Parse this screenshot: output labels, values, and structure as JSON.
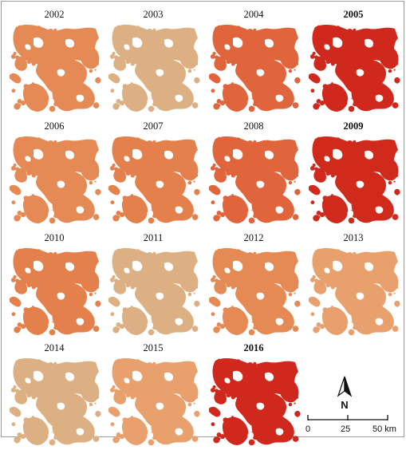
{
  "panels": [
    {
      "year": "2002",
      "bold": false,
      "color": "#e58a55"
    },
    {
      "year": "2003",
      "bold": false,
      "color": "#dcb082"
    },
    {
      "year": "2004",
      "bold": false,
      "color": "#e0643c"
    },
    {
      "year": "2005",
      "bold": true,
      "color": "#d0281c"
    },
    {
      "year": "2006",
      "bold": false,
      "color": "#e58a55"
    },
    {
      "year": "2007",
      "bold": false,
      "color": "#e3804c"
    },
    {
      "year": "2008",
      "bold": false,
      "color": "#e0643c"
    },
    {
      "year": "2009",
      "bold": true,
      "color": "#cf2a1c"
    },
    {
      "year": "2010",
      "bold": false,
      "color": "#e3804c"
    },
    {
      "year": "2011",
      "bold": false,
      "color": "#dcb082"
    },
    {
      "year": "2012",
      "bold": false,
      "color": "#e58a55"
    },
    {
      "year": "2013",
      "bold": false,
      "color": "#e8a06c"
    },
    {
      "year": "2014",
      "bold": false,
      "color": "#dcb082"
    },
    {
      "year": "2015",
      "bold": false,
      "color": "#e8a06c"
    },
    {
      "year": "2016",
      "bold": true,
      "color": "#d0281c"
    }
  ],
  "north_label": "N",
  "scale": {
    "labels": [
      "0",
      "25",
      "50 km"
    ]
  }
}
